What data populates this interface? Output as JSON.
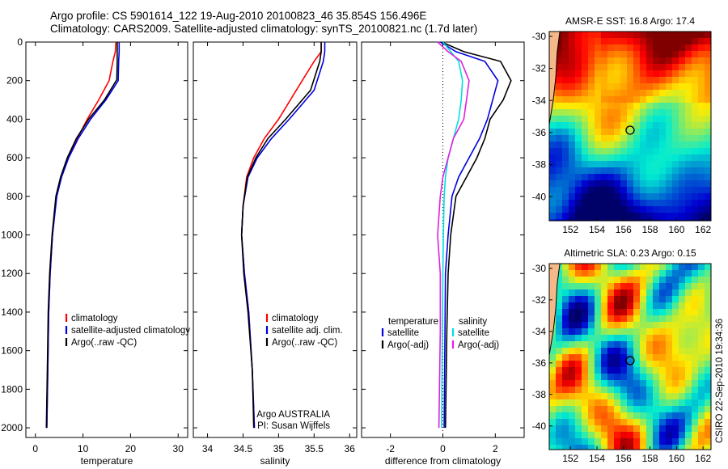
{
  "header": {
    "line1": "Argo profile: CS 5901614_122 19-Aug-2010 20100823_46 35.854S 156.496E",
    "line2": "Climatology: CARS2009. Satellite-adjusted climatology: synTS_20100821.nc (1.7d later)"
  },
  "side_label": "CSIRO 22-Sep-2010 19:34:36",
  "colors": {
    "climatology": "#ff0000",
    "satellite": "#0000e0",
    "argo": "#000000",
    "cyan": "#00e0e0",
    "magenta": "#e020e0",
    "land": "#f5b888"
  },
  "chart_data": [
    {
      "type": "line",
      "xlabel": "temperature",
      "xlim": [
        -2,
        32
      ],
      "xticks": [
        0,
        10,
        20,
        30
      ],
      "ylim": [
        2050,
        0
      ],
      "yticks": [
        0,
        200,
        400,
        600,
        800,
        1000,
        1200,
        1400,
        1600,
        1800,
        2000
      ],
      "legend": [
        "climatology",
        "satellite-adjusted climatology",
        "Argo(..raw -QC)"
      ],
      "series": [
        {
          "name": "climatology",
          "color": "red",
          "x": [
            16.9,
            16.8,
            16.3,
            15.5,
            13.3,
            10.9,
            8.8,
            6.9,
            5.4,
            4.4,
            3.6,
            3.1,
            2.8,
            2.6,
            2.4
          ],
          "y": [
            0,
            50,
            100,
            200,
            300,
            400,
            500,
            600,
            700,
            800,
            1000,
            1200,
            1400,
            1700,
            2000
          ]
        },
        {
          "name": "satellite-adjusted climatology",
          "color": "blue",
          "x": [
            17.6,
            17.6,
            17.5,
            17.4,
            14.8,
            11.6,
            9.0,
            7.0,
            5.5,
            4.5,
            3.6,
            3.1,
            2.8,
            2.6,
            2.4
          ],
          "y": [
            0,
            50,
            100,
            200,
            300,
            400,
            500,
            600,
            700,
            800,
            1000,
            1200,
            1400,
            1700,
            2000
          ]
        },
        {
          "name": "Argo(..raw -QC)",
          "color": "black",
          "x": [
            17.2,
            17.2,
            17.2,
            17.1,
            14.5,
            11.2,
            8.6,
            6.7,
            5.3,
            4.3,
            3.5,
            3.0,
            2.7,
            2.5,
            2.3
          ],
          "y": [
            0,
            50,
            100,
            195,
            300,
            400,
            500,
            600,
            700,
            800,
            1000,
            1200,
            1400,
            1700,
            2000
          ]
        }
      ]
    },
    {
      "type": "line",
      "xlabel": "salinity",
      "xlim": [
        33.8,
        36.1
      ],
      "xticks": [
        34,
        34.5,
        35,
        35.5,
        36
      ],
      "ylim": [
        2050,
        0
      ],
      "legend": [
        "climatology",
        "satellite adj. clim.",
        "Argo(..raw -QC)"
      ],
      "annotation": [
        "Argo AUSTRALIA",
        "PI: Susan Wijffels"
      ],
      "series": [
        {
          "name": "climatology",
          "color": "red",
          "x": [
            35.6,
            35.6,
            35.5,
            35.25,
            35.0,
            34.8,
            34.65,
            34.55,
            34.5,
            34.48,
            34.52,
            34.58,
            34.63,
            34.66
          ],
          "y": [
            0,
            50,
            100,
            250,
            400,
            500,
            600,
            700,
            850,
            1000,
            1200,
            1400,
            1700,
            2000
          ]
        },
        {
          "name": "satellite adj. clim.",
          "color": "blue",
          "x": [
            35.65,
            35.65,
            35.63,
            35.5,
            35.15,
            34.9,
            34.7,
            34.57,
            34.5,
            34.48,
            34.52,
            34.58,
            34.63,
            34.66
          ],
          "y": [
            0,
            50,
            100,
            250,
            400,
            500,
            600,
            700,
            850,
            1000,
            1200,
            1400,
            1700,
            2000
          ]
        },
        {
          "name": "Argo(..raw -QC)",
          "color": "black",
          "x": [
            35.6,
            35.6,
            35.58,
            35.45,
            35.1,
            34.85,
            34.68,
            34.56,
            34.5,
            34.48,
            34.51,
            34.57,
            34.63,
            34.65
          ],
          "y": [
            0,
            50,
            100,
            250,
            400,
            500,
            600,
            700,
            850,
            1000,
            1200,
            1400,
            1700,
            2000
          ]
        }
      ]
    },
    {
      "type": "line",
      "xlabel": "difference from climatology",
      "xlim": [
        -3.1,
        3.1
      ],
      "xticks": [
        -2,
        0,
        2
      ],
      "ylim": [
        2050,
        0
      ],
      "legend_groups": [
        {
          "title": "temperature",
          "entries": [
            "satellite",
            "Argo(-adj)"
          ]
        },
        {
          "title": "salinity",
          "entries": [
            "satellite",
            "Argo(-adj)"
          ]
        }
      ],
      "series": [
        {
          "name": "temperature satellite",
          "color": "blue",
          "x": [
            -0.1,
            0.5,
            1.6,
            2.1,
            1.9,
            1.7,
            1.4,
            1.0,
            0.6,
            0.35,
            0.2,
            0.1,
            0.08,
            0.05
          ],
          "y": [
            0,
            50,
            100,
            200,
            300,
            400,
            500,
            600,
            700,
            800,
            1000,
            1200,
            1500,
            2000
          ]
        },
        {
          "name": "temperature Argo(-adj)",
          "color": "black",
          "x": [
            -0.05,
            0.8,
            2.2,
            2.6,
            2.3,
            1.8,
            1.6,
            1.3,
            0.9,
            0.5,
            0.3,
            0.2,
            0.15,
            0.1
          ],
          "y": [
            0,
            50,
            100,
            200,
            300,
            400,
            500,
            600,
            700,
            800,
            1000,
            1200,
            1500,
            2000
          ]
        },
        {
          "name": "salinity satellite",
          "color": "cyan",
          "x": [
            0.0,
            0.3,
            0.6,
            0.75,
            0.7,
            0.6,
            0.4,
            0.2,
            0.1,
            0.05,
            0.02,
            0.0,
            -0.02,
            -0.05
          ],
          "y": [
            0,
            50,
            100,
            200,
            300,
            400,
            500,
            600,
            700,
            800,
            1000,
            1200,
            1500,
            2000
          ]
        },
        {
          "name": "salinity Argo(-adj)",
          "color": "magenta",
          "x": [
            -0.2,
            0.2,
            0.7,
            1.0,
            0.9,
            0.8,
            0.4,
            0.2,
            0.0,
            -0.1,
            -0.2,
            -0.1,
            -0.1,
            -0.15
          ],
          "y": [
            0,
            50,
            100,
            200,
            300,
            400,
            500,
            600,
            700,
            800,
            1000,
            1200,
            1500,
            2000
          ]
        }
      ]
    },
    {
      "type": "heatmap",
      "title": "AMSR-E SST: 16.8 Argo: 17.4",
      "xlim": [
        150.4,
        162.6
      ],
      "ylim": [
        -41.5,
        -29.7
      ],
      "xticks": [
        152,
        154,
        156,
        158,
        160,
        162
      ],
      "yticks": [
        -30,
        -32,
        -34,
        -36,
        -38,
        -40
      ],
      "argo_location": {
        "lon": 156.496,
        "lat": -35.854
      }
    },
    {
      "type": "heatmap",
      "title": "Altimetric SLA: 0.23 Argo: 0.15",
      "xlim": [
        150.4,
        162.6
      ],
      "ylim": [
        -41.5,
        -29.7
      ],
      "xticks": [
        152,
        154,
        156,
        158,
        160,
        162
      ],
      "yticks": [
        -30,
        -32,
        -34,
        -36,
        -38,
        -40
      ],
      "argo_location": {
        "lon": 156.496,
        "lat": -35.854
      }
    }
  ]
}
